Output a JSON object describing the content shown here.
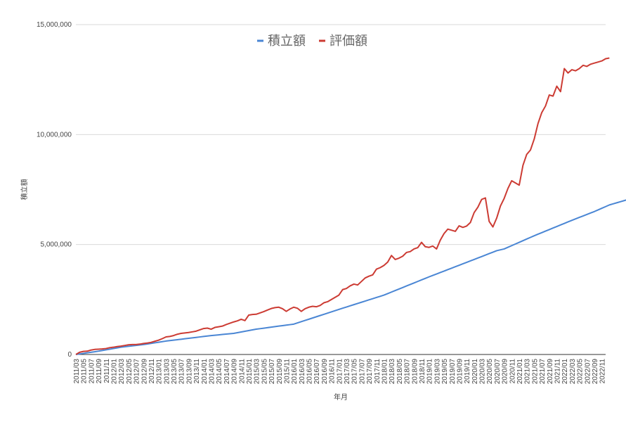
{
  "chart_data": {
    "type": "line",
    "title": "",
    "xlabel": "年月",
    "ylabel": "積立額",
    "ylim": [
      0,
      15000000
    ],
    "yticks": [
      0,
      5000000,
      10000000,
      15000000
    ],
    "ytick_labels": [
      "0",
      "5,000,000",
      "10,000,000",
      "15,000,000"
    ],
    "grid": true,
    "legend_position": "top",
    "x": [
      "2011/03",
      "2011/04",
      "2011/05",
      "2011/06",
      "2011/07",
      "2011/08",
      "2011/09",
      "2011/10",
      "2011/11",
      "2011/12",
      "2012/01",
      "2012/02",
      "2012/03",
      "2012/04",
      "2012/05",
      "2012/06",
      "2012/07",
      "2012/08",
      "2012/09",
      "2012/10",
      "2012/11",
      "2012/12",
      "2013/01",
      "2013/02",
      "2013/03",
      "2013/04",
      "2013/05",
      "2013/06",
      "2013/07",
      "2013/08",
      "2013/09",
      "2013/10",
      "2013/11",
      "2013/12",
      "2014/01",
      "2014/02",
      "2014/03",
      "2014/04",
      "2014/05",
      "2014/06",
      "2014/07",
      "2014/08",
      "2014/09",
      "2014/10",
      "2014/11",
      "2014/12",
      "2015/01",
      "2015/02",
      "2015/03",
      "2015/04",
      "2015/05",
      "2015/06",
      "2015/07",
      "2015/08",
      "2015/09",
      "2015/10",
      "2015/11",
      "2015/12",
      "2016/01",
      "2016/02",
      "2016/03",
      "2016/04",
      "2016/05",
      "2016/06",
      "2016/07",
      "2016/08",
      "2016/09",
      "2016/10",
      "2016/11",
      "2016/12",
      "2017/01",
      "2017/02",
      "2017/03",
      "2017/04",
      "2017/05",
      "2017/06",
      "2017/07",
      "2017/08",
      "2017/09",
      "2017/10",
      "2017/11",
      "2017/12",
      "2018/01",
      "2018/02",
      "2018/03",
      "2018/04",
      "2018/05",
      "2018/06",
      "2018/07",
      "2018/08",
      "2018/09",
      "2018/10",
      "2018/11",
      "2018/12",
      "2019/01",
      "2019/02",
      "2019/03",
      "2019/04",
      "2019/05",
      "2019/06",
      "2019/07",
      "2019/08",
      "2019/09",
      "2019/10",
      "2019/11",
      "2019/12",
      "2020/01",
      "2020/02",
      "2020/03",
      "2020/04",
      "2020/05",
      "2020/06",
      "2020/07",
      "2020/08",
      "2020/09",
      "2020/10",
      "2020/11",
      "2020/12",
      "2021/01",
      "2021/02",
      "2021/03",
      "2021/04",
      "2021/05",
      "2021/06",
      "2021/07",
      "2021/08",
      "2021/09",
      "2021/10",
      "2021/11",
      "2021/12",
      "2022/01",
      "2022/02",
      "2022/03",
      "2022/04",
      "2022/05",
      "2022/06",
      "2022/07",
      "2022/08",
      "2022/09",
      "2022/10",
      "2022/11",
      "2022/12"
    ],
    "x_tick_labels": [
      "2011/03",
      "2011/05",
      "2011/07",
      "2011/09",
      "2011/11",
      "2012/01",
      "2012/03",
      "2012/05",
      "2012/07",
      "2012/09",
      "2012/11",
      "2013/01",
      "2013/03",
      "2013/05",
      "2013/07",
      "2013/09",
      "2013/11",
      "2014/01",
      "2014/03",
      "2014/05",
      "2014/07",
      "2014/09",
      "2014/11",
      "2015/01",
      "2015/03",
      "2015/05",
      "2015/07",
      "2015/09",
      "2015/11",
      "2016/01",
      "2016/03",
      "2016/05",
      "2016/07",
      "2016/09",
      "2016/11",
      "2017/01",
      "2017/03",
      "2017/05",
      "2017/07",
      "2017/09",
      "2017/11",
      "2018/01",
      "2018/03",
      "2018/05",
      "2018/07",
      "2018/09",
      "2018/11",
      "2019/01",
      "2019/03",
      "2019/05",
      "2019/07",
      "2019/09",
      "2019/11",
      "2020/01",
      "2020/03",
      "2020/05",
      "2020/07",
      "2020/09",
      "2020/11",
      "2021/01",
      "2021/03",
      "2021/05",
      "2021/07",
      "2021/09",
      "2021/11",
      "2022/01",
      "2022/03",
      "2022/05",
      "2022/07",
      "2022/09",
      "2022/11"
    ],
    "series": [
      {
        "name": "積立額",
        "color": "#4a86d4",
        "anchors": [
          [
            0,
            0
          ],
          [
            6,
            150000
          ],
          [
            12,
            330000
          ],
          [
            18,
            450000
          ],
          [
            24,
            610000
          ],
          [
            36,
            860000
          ],
          [
            42,
            960000
          ],
          [
            48,
            1150000
          ],
          [
            54,
            1290000
          ],
          [
            58,
            1380000
          ],
          [
            70,
            2050000
          ],
          [
            82,
            2700000
          ],
          [
            94,
            3530000
          ],
          [
            106,
            4320000
          ],
          [
            112,
            4720000
          ],
          [
            114,
            4800000
          ],
          [
            122,
            5400000
          ],
          [
            132,
            6100000
          ],
          [
            138,
            6500000
          ],
          [
            142,
            6800000
          ],
          [
            154,
            7400000
          ]
        ]
      },
      {
        "name": "評価額",
        "color": "#cc3b33",
        "anchors": [
          [
            0,
            0
          ],
          [
            1,
            100000
          ],
          [
            2,
            140000
          ],
          [
            3,
            150000
          ],
          [
            4,
            200000
          ],
          [
            5,
            230000
          ],
          [
            6,
            240000
          ],
          [
            7,
            250000
          ],
          [
            8,
            270000
          ],
          [
            9,
            310000
          ],
          [
            10,
            330000
          ],
          [
            11,
            360000
          ],
          [
            12,
            380000
          ],
          [
            13,
            410000
          ],
          [
            14,
            440000
          ],
          [
            15,
            450000
          ],
          [
            16,
            450000
          ],
          [
            17,
            470000
          ],
          [
            18,
            500000
          ],
          [
            19,
            520000
          ],
          [
            20,
            550000
          ],
          [
            21,
            600000
          ],
          [
            22,
            650000
          ],
          [
            23,
            720000
          ],
          [
            24,
            800000
          ],
          [
            25,
            820000
          ],
          [
            26,
            860000
          ],
          [
            27,
            920000
          ],
          [
            28,
            960000
          ],
          [
            29,
            980000
          ],
          [
            30,
            1000000
          ],
          [
            31,
            1030000
          ],
          [
            32,
            1060000
          ],
          [
            33,
            1120000
          ],
          [
            34,
            1180000
          ],
          [
            35,
            1200000
          ],
          [
            36,
            1150000
          ],
          [
            37,
            1230000
          ],
          [
            38,
            1260000
          ],
          [
            39,
            1290000
          ],
          [
            40,
            1360000
          ],
          [
            41,
            1420000
          ],
          [
            42,
            1480000
          ],
          [
            43,
            1530000
          ],
          [
            44,
            1600000
          ],
          [
            45,
            1540000
          ],
          [
            46,
            1790000
          ],
          [
            47,
            1820000
          ],
          [
            48,
            1830000
          ],
          [
            49,
            1890000
          ],
          [
            50,
            1950000
          ],
          [
            51,
            2020000
          ],
          [
            52,
            2090000
          ],
          [
            53,
            2130000
          ],
          [
            54,
            2150000
          ],
          [
            55,
            2080000
          ],
          [
            56,
            1960000
          ],
          [
            57,
            2070000
          ],
          [
            58,
            2150000
          ],
          [
            59,
            2100000
          ],
          [
            60,
            1960000
          ],
          [
            61,
            2080000
          ],
          [
            62,
            2150000
          ],
          [
            63,
            2190000
          ],
          [
            64,
            2170000
          ],
          [
            65,
            2230000
          ],
          [
            66,
            2350000
          ],
          [
            67,
            2400000
          ],
          [
            68,
            2500000
          ],
          [
            69,
            2600000
          ],
          [
            70,
            2700000
          ],
          [
            71,
            2950000
          ],
          [
            72,
            3000000
          ],
          [
            73,
            3120000
          ],
          [
            74,
            3200000
          ],
          [
            75,
            3160000
          ],
          [
            76,
            3320000
          ],
          [
            77,
            3480000
          ],
          [
            78,
            3560000
          ],
          [
            79,
            3620000
          ],
          [
            80,
            3880000
          ],
          [
            81,
            3950000
          ],
          [
            82,
            4050000
          ],
          [
            83,
            4200000
          ],
          [
            84,
            4500000
          ],
          [
            85,
            4320000
          ],
          [
            86,
            4380000
          ],
          [
            87,
            4470000
          ],
          [
            88,
            4640000
          ],
          [
            89,
            4680000
          ],
          [
            90,
            4800000
          ],
          [
            91,
            4860000
          ],
          [
            92,
            5100000
          ],
          [
            93,
            4900000
          ],
          [
            94,
            4870000
          ],
          [
            95,
            4930000
          ],
          [
            96,
            4800000
          ],
          [
            97,
            5200000
          ],
          [
            98,
            5500000
          ],
          [
            99,
            5700000
          ],
          [
            100,
            5650000
          ],
          [
            101,
            5600000
          ],
          [
            102,
            5850000
          ],
          [
            103,
            5780000
          ],
          [
            104,
            5840000
          ],
          [
            105,
            6000000
          ],
          [
            106,
            6450000
          ],
          [
            107,
            6700000
          ],
          [
            108,
            7050000
          ],
          [
            109,
            7120000
          ],
          [
            110,
            6050000
          ],
          [
            111,
            5800000
          ],
          [
            112,
            6200000
          ],
          [
            113,
            6750000
          ],
          [
            114,
            7100000
          ],
          [
            115,
            7550000
          ],
          [
            116,
            7900000
          ],
          [
            117,
            7800000
          ],
          [
            118,
            7700000
          ],
          [
            119,
            8600000
          ],
          [
            120,
            9100000
          ],
          [
            121,
            9300000
          ],
          [
            122,
            9800000
          ],
          [
            123,
            10500000
          ],
          [
            124,
            11000000
          ],
          [
            125,
            11300000
          ],
          [
            126,
            11800000
          ],
          [
            127,
            11750000
          ],
          [
            128,
            12200000
          ],
          [
            129,
            11950000
          ],
          [
            130,
            13000000
          ],
          [
            131,
            12800000
          ],
          [
            132,
            12950000
          ],
          [
            133,
            12900000
          ],
          [
            134,
            13000000
          ],
          [
            135,
            13150000
          ],
          [
            136,
            13100000
          ],
          [
            137,
            13200000
          ],
          [
            138,
            13250000
          ],
          [
            139,
            13300000
          ],
          [
            140,
            13350000
          ],
          [
            141,
            13450000
          ],
          [
            142,
            13480000
          ]
        ]
      }
    ]
  }
}
